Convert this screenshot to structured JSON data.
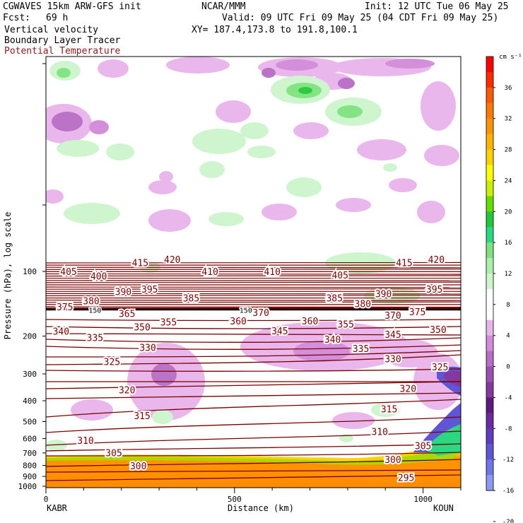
{
  "header": {
    "model": "CGWAVES 15km ARW-GFS init",
    "org": "NCAR/MMM",
    "init": "Init: 12 UTC Tue 06 May 25",
    "fcst_label": "Fcst:",
    "fcst_value": "69 h",
    "valid": "Valid: 09 UTC Fri 09 May 25 (04 CDT Fri 09 May 25)",
    "field1": "Vertical velocity",
    "xy": "XY= 187.4,173.8 to 191.8,100.1",
    "field2": "Boundary Layer Tracer",
    "field3": "Potential Temperature"
  },
  "colors": {
    "theta_contour": "#7a0000",
    "shading_low": "#ff8c00"
  },
  "chart_data": {
    "type": "heatmap",
    "ylabel": "Pressure (hPa), log scale",
    "xlabel": "Distance (km)",
    "y_scale": "log",
    "y_ticks": [
      "100",
      "200",
      "300",
      "400",
      "500",
      "600",
      "700",
      "800",
      "900",
      "1000"
    ],
    "x_ticks": [
      "0",
      "500",
      "1000"
    ],
    "x_endpoints": [
      "KABR",
      "KOUN"
    ],
    "xlim": [
      0,
      1100
    ],
    "ylim": [
      1000,
      10
    ],
    "colorbar": {
      "unit": "cm s⁻¹",
      "labels": [
        "36",
        "32",
        "28",
        "24",
        "20",
        "16",
        "12",
        "8",
        "4",
        "0",
        "-4",
        "-8",
        "-12",
        "-16",
        "-20"
      ],
      "colors": [
        "#ff0000",
        "#ff2a00",
        "#ff5a00",
        "#ff7800",
        "#ff9400",
        "#ffb300",
        "#ffd200",
        "#ffff00",
        "#c8f000",
        "#64dc00",
        "#22c83a",
        "#2ad882",
        "#7ee37e",
        "#aaf0aa",
        "#cdf5cd",
        "#ffffff",
        "#ffffff",
        "#e8b4ec",
        "#d28ad9",
        "#b86cc6",
        "#9c4fb0",
        "#86389e",
        "#5c1a80",
        "#6a2aa0",
        "#5f3bbf",
        "#5f55d6",
        "#6f74e6",
        "#8c98f2"
      ]
    },
    "theta_labels": [
      {
        "value": "420",
        "x": 335,
        "p": 88
      },
      {
        "value": "420",
        "x": 1035,
        "p": 88
      },
      {
        "value": "415",
        "x": 250,
        "p": 91
      },
      {
        "value": "415",
        "x": 950,
        "p": 91
      },
      {
        "value": "405",
        "x": 60,
        "p": 100
      },
      {
        "value": "405",
        "x": 780,
        "p": 104
      },
      {
        "value": "410",
        "x": 600,
        "p": 100
      },
      {
        "value": "410",
        "x": 435,
        "p": 100
      },
      {
        "value": "400",
        "x": 140,
        "p": 105
      },
      {
        "value": "395",
        "x": 275,
        "p": 121
      },
      {
        "value": "395",
        "x": 1030,
        "p": 121
      },
      {
        "value": "390",
        "x": 205,
        "p": 124
      },
      {
        "value": "390",
        "x": 895,
        "p": 127
      },
      {
        "value": "385",
        "x": 385,
        "p": 133
      },
      {
        "value": "385",
        "x": 765,
        "p": 133
      },
      {
        "value": "380",
        "x": 120,
        "p": 137
      },
      {
        "value": "380",
        "x": 840,
        "p": 141
      },
      {
        "value": "375",
        "x": 50,
        "p": 146
      },
      {
        "value": "375",
        "x": 985,
        "p": 154
      },
      {
        "value": "370",
        "x": 570,
        "p": 155
      },
      {
        "value": "370",
        "x": 920,
        "p": 160
      },
      {
        "value": "365",
        "x": 215,
        "p": 157
      },
      {
        "value": "360",
        "x": 510,
        "p": 170
      },
      {
        "value": "360",
        "x": 700,
        "p": 170
      },
      {
        "value": "355",
        "x": 325,
        "p": 172
      },
      {
        "value": "355",
        "x": 795,
        "p": 176
      },
      {
        "value": "350",
        "x": 255,
        "p": 181
      },
      {
        "value": "350",
        "x": 1040,
        "p": 186
      },
      {
        "value": "345",
        "x": 620,
        "p": 189
      },
      {
        "value": "345",
        "x": 920,
        "p": 196
      },
      {
        "value": "340",
        "x": 40,
        "p": 190
      },
      {
        "value": "340",
        "x": 760,
        "p": 207
      },
      {
        "value": "335",
        "x": 130,
        "p": 203
      },
      {
        "value": "335",
        "x": 835,
        "p": 228
      },
      {
        "value": "330",
        "x": 270,
        "p": 226
      },
      {
        "value": "330",
        "x": 920,
        "p": 255
      },
      {
        "value": "325",
        "x": 175,
        "p": 263
      },
      {
        "value": "325",
        "x": 1045,
        "p": 278
      },
      {
        "value": "320",
        "x": 215,
        "p": 355
      },
      {
        "value": "320",
        "x": 960,
        "p": 350
      },
      {
        "value": "315",
        "x": 255,
        "p": 468
      },
      {
        "value": "315",
        "x": 910,
        "p": 437
      },
      {
        "value": "310",
        "x": 105,
        "p": 612
      },
      {
        "value": "310",
        "x": 885,
        "p": 555
      },
      {
        "value": "305",
        "x": 180,
        "p": 699
      },
      {
        "value": "305",
        "x": 1000,
        "p": 646
      },
      {
        "value": "300",
        "x": 245,
        "p": 802
      },
      {
        "value": "300",
        "x": 920,
        "p": 750
      },
      {
        "value": "295",
        "x": 955,
        "p": 910
      }
    ],
    "tropopause_labels": [
      {
        "value": "150",
        "x": 130,
        "p": 151
      },
      {
        "value": "150",
        "x": 530,
        "p": 151
      }
    ]
  }
}
